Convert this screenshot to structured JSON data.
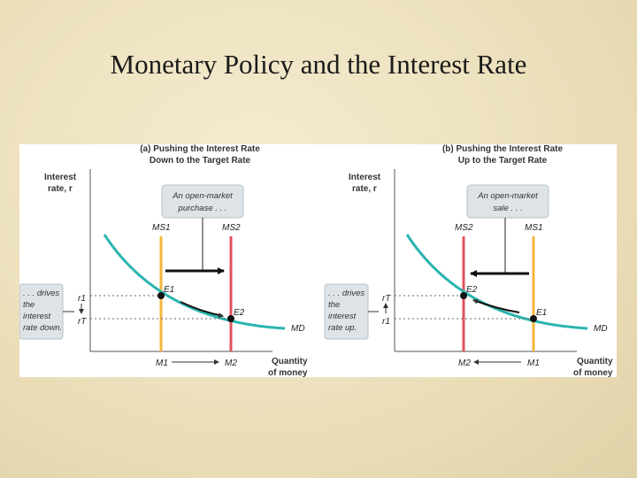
{
  "slide": {
    "title": "Monetary Policy and the Interest Rate"
  },
  "panel_a": {
    "title_line1": "(a) Pushing the Interest Rate",
    "title_line2": "Down to the Target Rate",
    "y_axis_line1": "Interest",
    "y_axis_line2": "rate, r",
    "x_axis_line1": "Quantity",
    "x_axis_line2": "of money",
    "callout_line1": "An open-market",
    "callout_line2": "purchase . . .",
    "side_note_lines": [
      ". . . drives",
      "the",
      "interest",
      "rate down."
    ],
    "ms_left": "MS1",
    "ms_right": "MS2",
    "m_left": "M1",
    "m_right": "M2",
    "r_upper": "r1",
    "r_lower": "rT",
    "e_upper": "E1",
    "e_lower": "E2",
    "md": "MD"
  },
  "panel_b": {
    "title_line1": "(b) Pushing the Interest Rate",
    "title_line2": "Up to the Target Rate",
    "y_axis_line1": "Interest",
    "y_axis_line2": "rate, r",
    "x_axis_line1": "Quantity",
    "x_axis_line2": "of money",
    "callout_line1": "An open-market",
    "callout_line2": "sale . . .",
    "side_note_lines": [
      ". . . drives",
      "the",
      "interest",
      "rate up."
    ],
    "ms_left": "MS2",
    "ms_right": "MS1",
    "m_left": "M2",
    "m_right": "M1",
    "r_upper": "rT",
    "r_lower": "r1",
    "e_upper": "E2",
    "e_lower": "E1",
    "md": "MD"
  },
  "colors": {
    "ms_orange": "#f3b63c",
    "ms_red": "#e0525b",
    "md_teal": "#2bb5b0",
    "callout_fill": "#dde3e6",
    "background": "#efe5c5"
  }
}
